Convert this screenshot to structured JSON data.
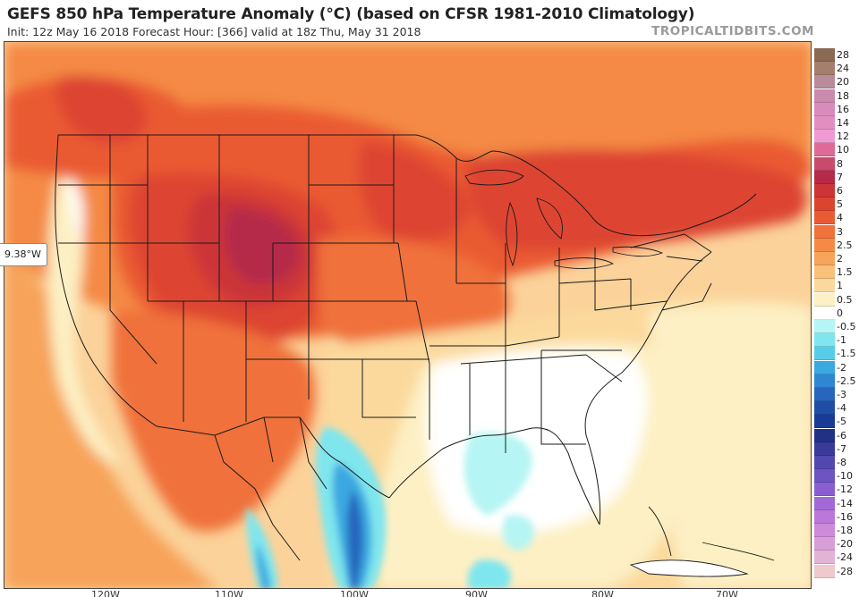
{
  "header": {
    "title": "GEFS 850 hPa Temperature Anomaly (°C) (based on CFSR 1981-2010 Climatology)",
    "subtitle": "Init: 12z May 16 2018   Forecast Hour: [366]   valid at 18z Thu, May 31 2018",
    "brand": "TROPICALTIDBITS.COM"
  },
  "map": {
    "cursor_readout": "9.38°W",
    "longitude_labels": [
      "120W",
      "110W",
      "100W",
      "90W",
      "80W",
      "70W"
    ]
  },
  "legend": {
    "entries": [
      {
        "label": "28",
        "color": "#8a6a55"
      },
      {
        "label": "24",
        "color": "#a47f6d"
      },
      {
        "label": "20",
        "color": "#b98a9a"
      },
      {
        "label": "18",
        "color": "#c98aab"
      },
      {
        "label": "16",
        "color": "#d98bbb"
      },
      {
        "label": "14",
        "color": "#e38ec2"
      },
      {
        "label": "12",
        "color": "#ef9ad2"
      },
      {
        "label": "10",
        "color": "#e06a97"
      },
      {
        "label": "8",
        "color": "#c84a6c"
      },
      {
        "label": "7",
        "color": "#b52a48"
      },
      {
        "label": "6",
        "color": "#cc3437"
      },
      {
        "label": "5",
        "color": "#dd4430"
      },
      {
        "label": "4",
        "color": "#ea5a33"
      },
      {
        "label": "3",
        "color": "#f0713a"
      },
      {
        "label": "2.5",
        "color": "#f48a45"
      },
      {
        "label": "2",
        "color": "#f7a35a"
      },
      {
        "label": "1.5",
        "color": "#f9c07a"
      },
      {
        "label": "1",
        "color": "#fbd99c"
      },
      {
        "label": "0.5",
        "color": "#fdf0c4"
      },
      {
        "label": "0",
        "color": "#ffffff"
      },
      {
        "label": "-0.5",
        "color": "#b5f5f3"
      },
      {
        "label": "-1",
        "color": "#7fe6ee"
      },
      {
        "label": "-1.5",
        "color": "#56cde8"
      },
      {
        "label": "-2",
        "color": "#3ba8e0"
      },
      {
        "label": "-2.5",
        "color": "#2f86d2"
      },
      {
        "label": "-3",
        "color": "#2866bd"
      },
      {
        "label": "-4",
        "color": "#1f4ea8"
      },
      {
        "label": "-5",
        "color": "#1a3b95"
      },
      {
        "label": "-6",
        "color": "#223086"
      },
      {
        "label": "-7",
        "color": "#3a3a9a"
      },
      {
        "label": "-8",
        "color": "#5348b0"
      },
      {
        "label": "-10",
        "color": "#6c55c2"
      },
      {
        "label": "-12",
        "color": "#8a5dd0"
      },
      {
        "label": "-14",
        "color": "#a369d6"
      },
      {
        "label": "-16",
        "color": "#bb78d9"
      },
      {
        "label": "-18",
        "color": "#cc8ad9"
      },
      {
        "label": "-20",
        "color": "#d89ed8"
      },
      {
        "label": "-24",
        "color": "#e3b3d6"
      },
      {
        "label": "-28",
        "color": "#f0c9cd"
      }
    ]
  }
}
